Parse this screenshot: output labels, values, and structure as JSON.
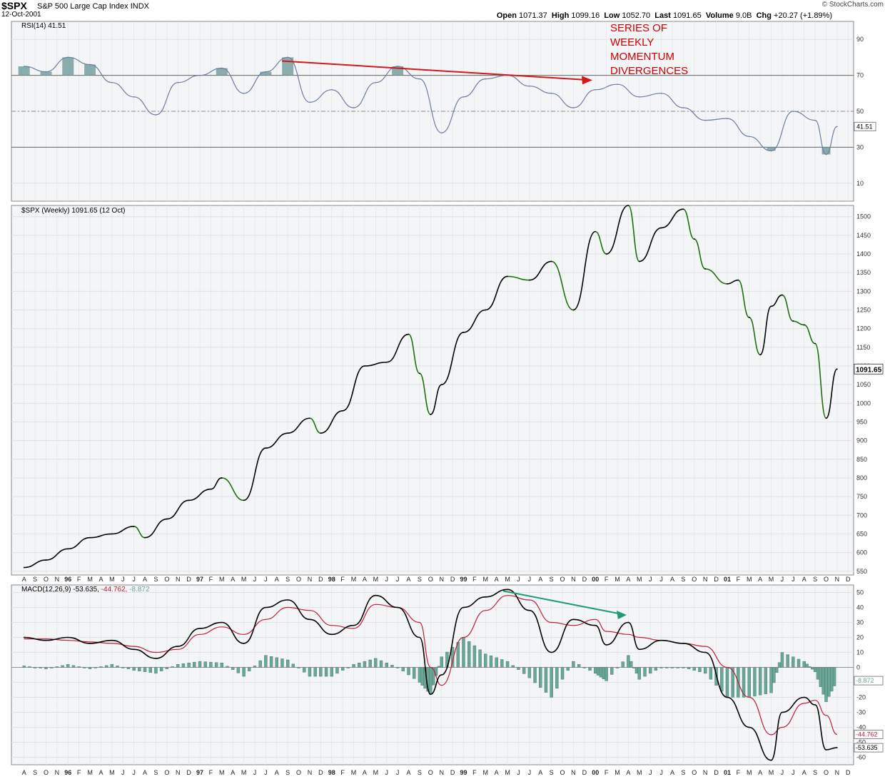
{
  "header": {
    "ticker": "$SPX",
    "description": "S&P 500 Large Cap Index",
    "exchange": "INDX",
    "date": "12-Oct-2001",
    "copyright": "© StockCharts.com",
    "quote": [
      {
        "label": "Open",
        "value": "1071.37"
      },
      {
        "label": "High",
        "value": "1099.16"
      },
      {
        "label": "Low",
        "value": "1052.70"
      },
      {
        "label": "Last",
        "value": "1091.65"
      },
      {
        "label": "Volume",
        "value": "9.0B"
      },
      {
        "label": "Chg",
        "value": "+20.27 (+1.89%)"
      }
    ]
  },
  "colors": {
    "background": "#f4f5f7",
    "grid": "#dfe2e6",
    "price_up": "#000000",
    "price_down": "#1f6f12",
    "rsi_line": "#6d7ea0",
    "rsi_fill": "#6f9a9a",
    "macd_line": "#000000",
    "signal_line": "#c21d3a",
    "histogram": "#6aa596",
    "red_arrow": "#d11a1a",
    "green_arrow": "#1e9c72",
    "annotation_text": "#cc0000"
  },
  "annotations": {
    "divergence_text": [
      "SERIES OF",
      "WEEKLY",
      "MOMENTUM",
      "DIVERGENCES"
    ]
  },
  "chart_data": [
    {
      "type": "line",
      "panel": "rsi",
      "label": "RSI(14) 41.51",
      "current_value": "41.51",
      "ylim": [
        0,
        100
      ],
      "ticks": [
        10,
        30,
        50,
        70,
        90
      ],
      "reference_lines": [
        30,
        50,
        70
      ],
      "x": [
        "1995-08",
        "1995-10",
        "1995-12",
        "1996-02",
        "1996-04",
        "1996-06",
        "1996-08",
        "1996-10",
        "1996-12",
        "1997-02",
        "1997-04",
        "1997-06",
        "1997-08",
        "1997-10",
        "1997-12",
        "1998-02",
        "1998-04",
        "1998-06",
        "1998-08",
        "1998-10",
        "1998-12",
        "1999-02",
        "1999-04",
        "1999-06",
        "1999-08",
        "1999-10",
        "1999-12",
        "2000-02",
        "2000-04",
        "2000-06",
        "2000-08",
        "2000-10",
        "2000-12",
        "2001-02",
        "2001-04",
        "2001-06",
        "2001-08",
        "2001-09",
        "2001-10"
      ],
      "values": [
        75,
        72,
        80,
        76,
        66,
        58,
        48,
        66,
        70,
        74,
        60,
        72,
        80,
        55,
        62,
        52,
        66,
        75,
        68,
        38,
        58,
        68,
        70,
        64,
        60,
        52,
        62,
        65,
        58,
        60,
        52,
        45,
        46,
        36,
        28,
        50,
        45,
        26,
        41.5
      ]
    },
    {
      "type": "line",
      "panel": "price",
      "label": "$SPX (Weekly) 1091.65 (12 Oct)",
      "current_value": "1091.65",
      "ylim": [
        540,
        1530
      ],
      "ticks": [
        550,
        600,
        650,
        700,
        750,
        800,
        850,
        900,
        950,
        1000,
        1050,
        1100,
        1150,
        1200,
        1250,
        1300,
        1350,
        1400,
        1450,
        1500
      ],
      "x": [
        "1995-08",
        "1995-10",
        "1995-12",
        "1996-02",
        "1996-04",
        "1996-06",
        "1996-07",
        "1996-09",
        "1996-11",
        "1997-01",
        "1997-02",
        "1997-04",
        "1997-06",
        "1997-08",
        "1997-10",
        "1997-11",
        "1998-01",
        "1998-03",
        "1998-05",
        "1998-07",
        "1998-08",
        "1998-09",
        "1998-10",
        "1998-12",
        "1999-02",
        "1999-04",
        "1999-06",
        "1999-08",
        "1999-10",
        "1999-12",
        "2000-01",
        "2000-03",
        "2000-04",
        "2000-06",
        "2000-08",
        "2000-09",
        "2000-10",
        "2000-12",
        "2001-01",
        "2001-02",
        "2001-03",
        "2001-04",
        "2001-05",
        "2001-06",
        "2001-07",
        "2001-08",
        "2001-09",
        "2001-10"
      ],
      "values": [
        560,
        580,
        610,
        640,
        650,
        670,
        640,
        690,
        740,
        770,
        800,
        740,
        880,
        920,
        960,
        920,
        980,
        1100,
        1110,
        1185,
        1080,
        970,
        1050,
        1190,
        1250,
        1340,
        1330,
        1380,
        1250,
        1460,
        1400,
        1530,
        1380,
        1470,
        1520,
        1440,
        1360,
        1320,
        1330,
        1230,
        1130,
        1260,
        1290,
        1220,
        1210,
        1160,
        960,
        1091.65
      ]
    },
    {
      "type": "line",
      "panel": "macd",
      "label": "MACD(12,26,9) -53.635, -44.762, -8.872",
      "ylim": [
        -65,
        55
      ],
      "ticks": [
        -60,
        -50,
        -40,
        -30,
        -20,
        -10,
        0,
        10,
        20,
        30,
        40,
        50
      ],
      "x": [
        "1995-08",
        "1995-10",
        "1995-12",
        "1996-02",
        "1996-04",
        "1996-06",
        "1996-08",
        "1996-10",
        "1996-12",
        "1997-02",
        "1997-04",
        "1997-06",
        "1997-08",
        "1997-10",
        "1997-12",
        "1998-02",
        "1998-04",
        "1998-06",
        "1998-08",
        "1998-09",
        "1998-10",
        "1998-12",
        "1999-02",
        "1999-04",
        "1999-06",
        "1999-08",
        "1999-10",
        "1999-12",
        "2000-01",
        "2000-03",
        "2000-04",
        "2000-06",
        "2000-08",
        "2000-10",
        "2000-12",
        "2001-02",
        "2001-04",
        "2001-05",
        "2001-07",
        "2001-08",
        "2001-09",
        "2001-10"
      ],
      "series": [
        {
          "name": "MACD",
          "current": "-53.635",
          "values": [
            20,
            18,
            20,
            16,
            18,
            12,
            6,
            14,
            26,
            30,
            16,
            40,
            45,
            32,
            22,
            28,
            48,
            40,
            20,
            -18,
            -5,
            40,
            47,
            52,
            38,
            10,
            32,
            28,
            15,
            30,
            12,
            18,
            16,
            10,
            -20,
            -40,
            -62,
            -30,
            -20,
            -25,
            -55,
            -53.635
          ]
        },
        {
          "name": "Signal",
          "current": "-44.762",
          "values": [
            19,
            19,
            18,
            17,
            16,
            14,
            10,
            12,
            22,
            27,
            22,
            32,
            40,
            38,
            28,
            26,
            42,
            40,
            30,
            0,
            -12,
            20,
            38,
            48,
            45,
            30,
            28,
            32,
            24,
            22,
            20,
            18,
            16,
            14,
            0,
            -20,
            -45,
            -40,
            -24,
            -22,
            -32,
            -44.762
          ]
        },
        {
          "name": "Histogram",
          "current": "-8.872",
          "values": [
            1,
            -1,
            2,
            -1,
            2,
            -2,
            -4,
            2,
            4,
            3,
            -6,
            8,
            5,
            -6,
            -6,
            2,
            6,
            0,
            -10,
            -18,
            7,
            20,
            9,
            4,
            -7,
            -20,
            4,
            -4,
            -9,
            8,
            -8,
            0,
            0,
            -4,
            -20,
            -20,
            -17,
            10,
            4,
            -3,
            -23,
            -8.872
          ]
        }
      ]
    }
  ],
  "x_axis": {
    "labels": [
      "A",
      "S",
      "O",
      "N",
      "96",
      "F",
      "M",
      "A",
      "M",
      "J",
      "J",
      "A",
      "S",
      "O",
      "N",
      "D",
      "97",
      "F",
      "M",
      "A",
      "M",
      "J",
      "J",
      "A",
      "S",
      "O",
      "N",
      "D",
      "98",
      "F",
      "M",
      "A",
      "M",
      "J",
      "J",
      "A",
      "S",
      "O",
      "N",
      "D",
      "99",
      "F",
      "M",
      "A",
      "M",
      "J",
      "J",
      "A",
      "S",
      "O",
      "N",
      "D",
      "00",
      "F",
      "M",
      "A",
      "M",
      "J",
      "J",
      "A",
      "S",
      "O",
      "N",
      "D",
      "01",
      "F",
      "M",
      "A",
      "M",
      "J",
      "J",
      "A",
      "S",
      "O",
      "N",
      "D"
    ]
  }
}
